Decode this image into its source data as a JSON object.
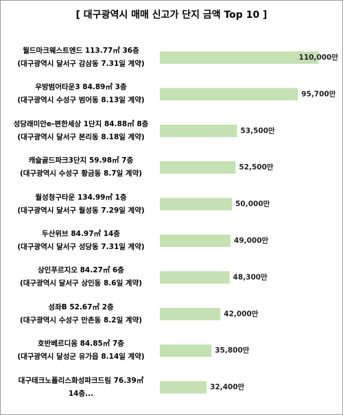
{
  "chart_data": {
    "type": "bar",
    "orientation": "horizontal",
    "title": "[ 대구광역시 매매 신고가 단지 금액 Top 10 ]",
    "categories": [
      "월드마크웨스트엔드 113.77㎡ 36층\n(대구광역시 달서구 감삼동 7.31일 계약)",
      "우방범어타운3 84.89㎡ 3층\n(대구광역시 수성구 범어동 8.13일 계약)",
      "성당래미안e-편한세상 1단지 84.88㎡ 8층\n(대구광역시 달서구 본리동 8.18일 계약)",
      "캐슬골드파크3단지 59.98㎡ 7층\n(대구광역시 수성구 황금동 8.7일 계약)",
      "월성청구타운 134.99㎡ 1층\n(대구광역시 달서구 월성동 7.29일 계약)",
      "두산위브 84.97㎡ 14층\n(대구광역시 달서구 성당동 7.31일 계약)",
      "상인푸르지오 84.27㎡ 6층\n(대구광역시 달서구 상인동 8.6일 계약)",
      "성좌B 52.67㎡ 2층\n(대구광역시 수성구 만촌동 8.2일 계약)",
      "호반베르디움 84.85㎡ 7층\n(대구광역시 달성군 유가읍 8.14일 계약)",
      "대구테크노폴리스화성파크드림 76.39㎡\n14층..."
    ],
    "values": [
      110000,
      95700,
      53500,
      52500,
      50000,
      49000,
      48300,
      42000,
      35800,
      32400
    ],
    "value_labels": [
      "110,000만",
      "95,700만",
      "53,500만",
      "52,500만",
      "50,000만",
      "49,000만",
      "48,300만",
      "42,000만",
      "35,800만",
      "32,400만"
    ],
    "color": "#c5e0b3",
    "xlim": [
      0,
      117000
    ]
  }
}
